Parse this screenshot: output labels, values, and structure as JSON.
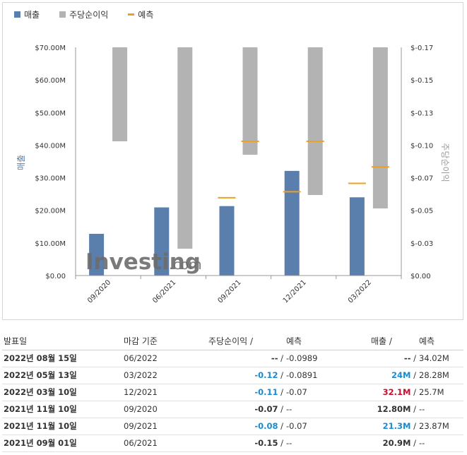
{
  "legend": {
    "revenue": "매출",
    "eps": "주당순이익",
    "forecast": "예측"
  },
  "colors": {
    "revenue": "#5b7fac",
    "eps": "#b3b3b3",
    "forecast": "#f0a020",
    "positive": "#1a8bd1",
    "negative": "#c8102e"
  },
  "watermark": {
    "brand": "Investing",
    "suffix": ".com"
  },
  "chart_data": {
    "type": "bar",
    "categories": [
      "09/2020",
      "06/2021",
      "09/2021",
      "12/2021",
      "03/2022"
    ],
    "series": [
      {
        "name": "매출",
        "axis": "left",
        "values": [
          12.8,
          20.9,
          21.3,
          32.1,
          24.0
        ]
      },
      {
        "name": "주당순이익",
        "axis": "right",
        "values": [
          -0.07,
          -0.15,
          -0.08,
          -0.11,
          -0.12
        ]
      },
      {
        "name": "예측",
        "axis": "both",
        "revenue_forecast": [
          null,
          null,
          23.87,
          25.7,
          28.28
        ],
        "eps_forecast": [
          null,
          null,
          -0.07,
          -0.07,
          -0.0891
        ]
      }
    ],
    "ylabel": "매출",
    "y2label": "주당순이익",
    "ylim": [
      0,
      70
    ],
    "y2lim": [
      -0.17,
      0
    ],
    "yticks": [
      "$0.00",
      "$10.00M",
      "$20.00M",
      "$30.00M",
      "$40.00M",
      "$50.00M",
      "$60.00M",
      "$70.00M"
    ],
    "y2ticks": [
      "$0.00",
      "$-0.03",
      "$-0.05",
      "$-0.07",
      "$-0.10",
      "$-0.13",
      "$-0.15",
      "$-0.17"
    ],
    "grid": false
  },
  "table": {
    "headers": {
      "date": "발표일",
      "period": "마감 기준",
      "eps": "주당순이익",
      "eps_forecast": "예측",
      "revenue": "매출",
      "revenue_forecast": "예측",
      "slash": "/"
    },
    "rows": [
      {
        "date": "2022년 08월 15일",
        "period": "06/2022",
        "eps": "--",
        "eps_color": "",
        "eps_forecast": "-0.0989",
        "revenue": "--",
        "revenue_color": "",
        "revenue_forecast": "34.02M"
      },
      {
        "date": "2022년 05월 13일",
        "period": "03/2022",
        "eps": "-0.12",
        "eps_color": "blue",
        "eps_forecast": "-0.0891",
        "revenue": "24M",
        "revenue_color": "blue",
        "revenue_forecast": "28.28M"
      },
      {
        "date": "2022년 03월 10일",
        "period": "12/2021",
        "eps": "-0.11",
        "eps_color": "blue",
        "eps_forecast": "-0.07",
        "revenue": "32.1M",
        "revenue_color": "red",
        "revenue_forecast": "25.7M"
      },
      {
        "date": "2021년 11월 10일",
        "period": "09/2020",
        "eps": "-0.07",
        "eps_color": "",
        "eps_forecast": "--",
        "revenue": "12.80M",
        "revenue_color": "",
        "revenue_forecast": "--"
      },
      {
        "date": "2021년 11월 10일",
        "period": "09/2021",
        "eps": "-0.08",
        "eps_color": "blue",
        "eps_forecast": "-0.07",
        "revenue": "21.3M",
        "revenue_color": "blue",
        "revenue_forecast": "23.87M"
      },
      {
        "date": "2021년 09월 01일",
        "period": "06/2021",
        "eps": "-0.15",
        "eps_color": "",
        "eps_forecast": "--",
        "revenue": "20.9M",
        "revenue_color": "",
        "revenue_forecast": "--"
      }
    ]
  }
}
